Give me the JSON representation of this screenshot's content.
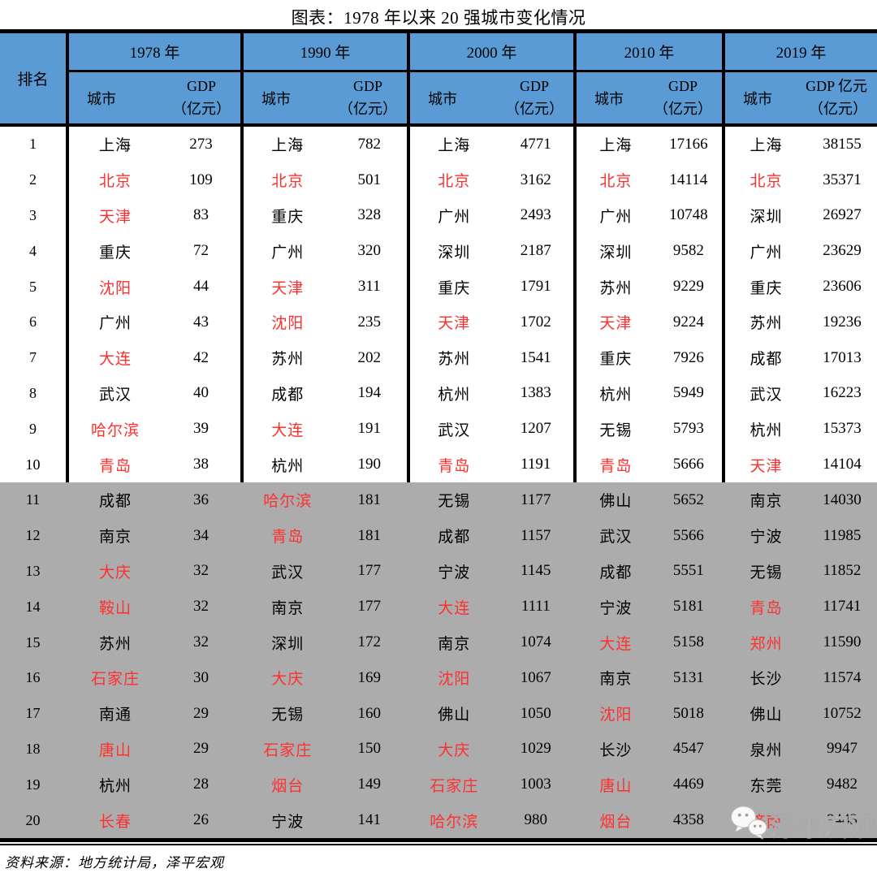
{
  "title": "图表：1978 年以来 20 强城市变化情况",
  "colors": {
    "header_bg": "#5B9BD5",
    "band_gray": "#ACACAC",
    "highlight_red": "#FF2F2F"
  },
  "header": {
    "rank_label": "排名",
    "city_label": "城市",
    "year_groups": [
      {
        "year": "1978 年",
        "gdp_line1": "GDP",
        "gdp_line2": "（亿元）"
      },
      {
        "year": "1990 年",
        "gdp_line1": "GDP",
        "gdp_line2": "（亿元）"
      },
      {
        "year": "2000 年",
        "gdp_line1": "GDP",
        "gdp_line2": "（亿元）"
      },
      {
        "year": "2010 年",
        "gdp_line1": "GDP",
        "gdp_line2": "（亿元）"
      },
      {
        "year": "2019 年",
        "gdp_line1": "GDP 亿元",
        "gdp_line2": "（亿元）"
      }
    ]
  },
  "chart_data": {
    "type": "table",
    "title": "图表：1978 年以来 20 强城市变化情况",
    "unit": "亿元",
    "years": [
      "1978",
      "1990",
      "2000",
      "2010",
      "2019"
    ],
    "rows": [
      {
        "rank": "1",
        "cells": [
          {
            "city": "上海",
            "gdp": "273",
            "red": false
          },
          {
            "city": "上海",
            "gdp": "782",
            "red": false
          },
          {
            "city": "上海",
            "gdp": "4771",
            "red": false
          },
          {
            "city": "上海",
            "gdp": "17166",
            "red": false
          },
          {
            "city": "上海",
            "gdp": "38155",
            "red": false
          }
        ]
      },
      {
        "rank": "2",
        "cells": [
          {
            "city": "北京",
            "gdp": "109",
            "red": true
          },
          {
            "city": "北京",
            "gdp": "501",
            "red": true
          },
          {
            "city": "北京",
            "gdp": "3162",
            "red": true
          },
          {
            "city": "北京",
            "gdp": "14114",
            "red": true
          },
          {
            "city": "北京",
            "gdp": "35371",
            "red": true
          }
        ]
      },
      {
        "rank": "3",
        "cells": [
          {
            "city": "天津",
            "gdp": "83",
            "red": true
          },
          {
            "city": "重庆",
            "gdp": "328",
            "red": false
          },
          {
            "city": "广州",
            "gdp": "2493",
            "red": false
          },
          {
            "city": "广州",
            "gdp": "10748",
            "red": false
          },
          {
            "city": "深圳",
            "gdp": "26927",
            "red": false
          }
        ]
      },
      {
        "rank": "4",
        "cells": [
          {
            "city": "重庆",
            "gdp": "72",
            "red": false
          },
          {
            "city": "广州",
            "gdp": "320",
            "red": false
          },
          {
            "city": "深圳",
            "gdp": "2187",
            "red": false
          },
          {
            "city": "深圳",
            "gdp": "9582",
            "red": false
          },
          {
            "city": "广州",
            "gdp": "23629",
            "red": false
          }
        ]
      },
      {
        "rank": "5",
        "cells": [
          {
            "city": "沈阳",
            "gdp": "44",
            "red": true
          },
          {
            "city": "天津",
            "gdp": "311",
            "red": true
          },
          {
            "city": "重庆",
            "gdp": "1791",
            "red": false
          },
          {
            "city": "苏州",
            "gdp": "9229",
            "red": false
          },
          {
            "city": "重庆",
            "gdp": "23606",
            "red": false
          }
        ]
      },
      {
        "rank": "6",
        "cells": [
          {
            "city": "广州",
            "gdp": "43",
            "red": false
          },
          {
            "city": "沈阳",
            "gdp": "235",
            "red": true
          },
          {
            "city": "天津",
            "gdp": "1702",
            "red": true
          },
          {
            "city": "天津",
            "gdp": "9224",
            "red": true
          },
          {
            "city": "苏州",
            "gdp": "19236",
            "red": false
          }
        ]
      },
      {
        "rank": "7",
        "cells": [
          {
            "city": "大连",
            "gdp": "42",
            "red": true
          },
          {
            "city": "苏州",
            "gdp": "202",
            "red": false
          },
          {
            "city": "苏州",
            "gdp": "1541",
            "red": false
          },
          {
            "city": "重庆",
            "gdp": "7926",
            "red": false
          },
          {
            "city": "成都",
            "gdp": "17013",
            "red": false
          }
        ]
      },
      {
        "rank": "8",
        "cells": [
          {
            "city": "武汉",
            "gdp": "40",
            "red": false
          },
          {
            "city": "成都",
            "gdp": "194",
            "red": false
          },
          {
            "city": "杭州",
            "gdp": "1383",
            "red": false
          },
          {
            "city": "杭州",
            "gdp": "5949",
            "red": false
          },
          {
            "city": "武汉",
            "gdp": "16223",
            "red": false
          }
        ]
      },
      {
        "rank": "9",
        "cells": [
          {
            "city": "哈尔滨",
            "gdp": "39",
            "red": true
          },
          {
            "city": "大连",
            "gdp": "191",
            "red": true
          },
          {
            "city": "武汉",
            "gdp": "1207",
            "red": false
          },
          {
            "city": "无锡",
            "gdp": "5793",
            "red": false
          },
          {
            "city": "杭州",
            "gdp": "15373",
            "red": false
          }
        ]
      },
      {
        "rank": "10",
        "cells": [
          {
            "city": "青岛",
            "gdp": "38",
            "red": true
          },
          {
            "city": "杭州",
            "gdp": "190",
            "red": false
          },
          {
            "city": "青岛",
            "gdp": "1191",
            "red": true
          },
          {
            "city": "青岛",
            "gdp": "5666",
            "red": true
          },
          {
            "city": "天津",
            "gdp": "14104",
            "red": true
          }
        ]
      },
      {
        "rank": "11",
        "cells": [
          {
            "city": "成都",
            "gdp": "36",
            "red": false
          },
          {
            "city": "哈尔滨",
            "gdp": "181",
            "red": true
          },
          {
            "city": "无锡",
            "gdp": "1177",
            "red": false
          },
          {
            "city": "佛山",
            "gdp": "5652",
            "red": false
          },
          {
            "city": "南京",
            "gdp": "14030",
            "red": false
          }
        ]
      },
      {
        "rank": "12",
        "cells": [
          {
            "city": "南京",
            "gdp": "34",
            "red": false
          },
          {
            "city": "青岛",
            "gdp": "181",
            "red": true
          },
          {
            "city": "成都",
            "gdp": "1157",
            "red": false
          },
          {
            "city": "武汉",
            "gdp": "5566",
            "red": false
          },
          {
            "city": "宁波",
            "gdp": "11985",
            "red": false
          }
        ]
      },
      {
        "rank": "13",
        "cells": [
          {
            "city": "大庆",
            "gdp": "32",
            "red": true
          },
          {
            "city": "武汉",
            "gdp": "177",
            "red": false
          },
          {
            "city": "宁波",
            "gdp": "1145",
            "red": false
          },
          {
            "city": "成都",
            "gdp": "5551",
            "red": false
          },
          {
            "city": "无锡",
            "gdp": "11852",
            "red": false
          }
        ]
      },
      {
        "rank": "14",
        "cells": [
          {
            "city": "鞍山",
            "gdp": "32",
            "red": true
          },
          {
            "city": "南京",
            "gdp": "177",
            "red": false
          },
          {
            "city": "大连",
            "gdp": "1111",
            "red": true
          },
          {
            "city": "宁波",
            "gdp": "5181",
            "red": false
          },
          {
            "city": "青岛",
            "gdp": "11741",
            "red": true
          }
        ]
      },
      {
        "rank": "15",
        "cells": [
          {
            "city": "苏州",
            "gdp": "32",
            "red": false
          },
          {
            "city": "深圳",
            "gdp": "172",
            "red": false
          },
          {
            "city": "南京",
            "gdp": "1074",
            "red": false
          },
          {
            "city": "大连",
            "gdp": "5158",
            "red": true
          },
          {
            "city": "郑州",
            "gdp": "11590",
            "red": true
          }
        ]
      },
      {
        "rank": "16",
        "cells": [
          {
            "city": "石家庄",
            "gdp": "30",
            "red": true
          },
          {
            "city": "大庆",
            "gdp": "169",
            "red": true
          },
          {
            "city": "沈阳",
            "gdp": "1067",
            "red": true
          },
          {
            "city": "南京",
            "gdp": "5131",
            "red": false
          },
          {
            "city": "长沙",
            "gdp": "11574",
            "red": false
          }
        ]
      },
      {
        "rank": "17",
        "cells": [
          {
            "city": "南通",
            "gdp": "29",
            "red": false
          },
          {
            "city": "无锡",
            "gdp": "160",
            "red": false
          },
          {
            "city": "佛山",
            "gdp": "1050",
            "red": false
          },
          {
            "city": "沈阳",
            "gdp": "5018",
            "red": true
          },
          {
            "city": "佛山",
            "gdp": "10752",
            "red": false
          }
        ]
      },
      {
        "rank": "18",
        "cells": [
          {
            "city": "唐山",
            "gdp": "29",
            "red": true
          },
          {
            "city": "石家庄",
            "gdp": "150",
            "red": true
          },
          {
            "city": "大庆",
            "gdp": "1029",
            "red": true
          },
          {
            "city": "长沙",
            "gdp": "4547",
            "red": false
          },
          {
            "city": "泉州",
            "gdp": "9947",
            "red": false
          }
        ]
      },
      {
        "rank": "19",
        "cells": [
          {
            "city": "杭州",
            "gdp": "28",
            "red": false
          },
          {
            "city": "烟台",
            "gdp": "149",
            "red": true
          },
          {
            "city": "石家庄",
            "gdp": "1003",
            "red": true
          },
          {
            "city": "唐山",
            "gdp": "4469",
            "red": true
          },
          {
            "city": "东莞",
            "gdp": "9482",
            "red": false
          }
        ]
      },
      {
        "rank": "20",
        "cells": [
          {
            "city": "长春",
            "gdp": "26",
            "red": true
          },
          {
            "city": "宁波",
            "gdp": "141",
            "red": false
          },
          {
            "city": "哈尔滨",
            "gdp": "980",
            "red": true
          },
          {
            "city": "烟台",
            "gdp": "4358",
            "red": true
          },
          {
            "city": "济南",
            "gdp": "9443",
            "red": true
          }
        ]
      }
    ]
  },
  "footer": {
    "source": "资料来源：地方统计局，泽平宏观"
  },
  "watermark": {
    "label": "泽平宏观",
    "icon": "wechat-icon"
  }
}
